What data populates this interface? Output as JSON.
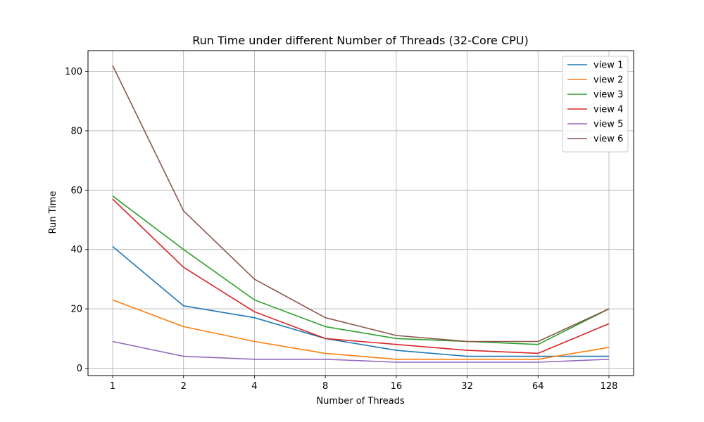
{
  "chart_data": {
    "type": "line",
    "title": "Run Time under different Number of Threads (32-Core CPU)",
    "xlabel": "Number of Threads",
    "ylabel": "Run Time",
    "categories": [
      "1",
      "2",
      "4",
      "8",
      "16",
      "32",
      "64",
      "128"
    ],
    "ylim": [
      -2.5,
      107
    ],
    "yticks": [
      0,
      20,
      40,
      60,
      80,
      100
    ],
    "grid": true,
    "legend_position": "top-right",
    "series": [
      {
        "name": "view 1",
        "color": "#1f77b4",
        "values": [
          41,
          21,
          17,
          10,
          6,
          4,
          4,
          4
        ]
      },
      {
        "name": "view 2",
        "color": "#ff7f0e",
        "values": [
          23,
          14,
          9,
          5,
          3,
          3,
          3,
          7
        ]
      },
      {
        "name": "view 3",
        "color": "#2ca02c",
        "values": [
          58,
          40,
          23,
          14,
          10,
          9,
          8,
          20
        ]
      },
      {
        "name": "view 4",
        "color": "#d62728",
        "values": [
          57,
          34,
          19,
          10,
          8,
          6,
          5,
          15
        ]
      },
      {
        "name": "view 5",
        "color": "#9467bd",
        "values": [
          9,
          4,
          3,
          3,
          2,
          2,
          2,
          3
        ]
      },
      {
        "name": "view 6",
        "color": "#8c564b",
        "values": [
          102,
          53,
          30,
          17,
          11,
          9,
          9,
          20
        ]
      }
    ]
  }
}
